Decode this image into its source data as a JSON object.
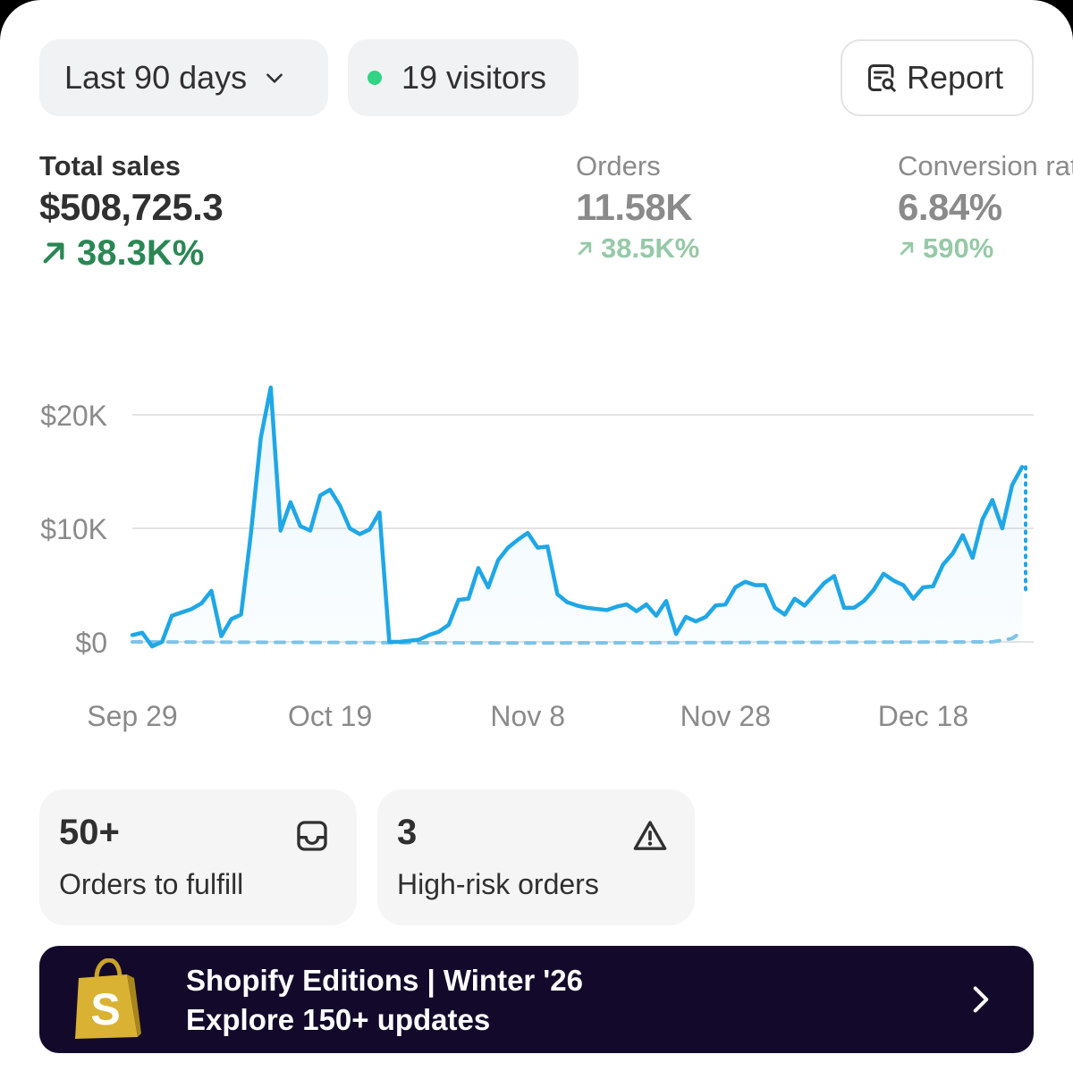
{
  "header": {
    "range_label": "Last 90 days",
    "visitors_label": "19 visitors",
    "report_label": "Report"
  },
  "metrics": {
    "total_sales": {
      "label": "Total sales",
      "value": "$508,725.3",
      "delta": "38.3K%"
    },
    "orders": {
      "label": "Orders",
      "value": "11.58K",
      "delta": "38.5K%"
    },
    "conversion": {
      "label": "Conversion rate",
      "value": "6.84%",
      "delta": "590%"
    }
  },
  "cards": {
    "fulfill": {
      "count": "50+",
      "label": "Orders to fulfill"
    },
    "risk": {
      "count": "3",
      "label": "High-risk orders"
    }
  },
  "banner": {
    "line1": "Shopify Editions | Winter '26",
    "line2": "Explore 150+ updates",
    "logo_letter": "S"
  },
  "colors": {
    "accent_line": "#1fa7e6",
    "comparison_line": "#7cc3e8",
    "positive": "#2a8754",
    "positive_muted": "#96c9a7",
    "live_dot": "#2fd485",
    "banner_bg": "#130a2b"
  },
  "chart_data": {
    "type": "line",
    "y_tick_labels": [
      "$0",
      "$10K",
      "$20K"
    ],
    "y_ticks": [
      0,
      10000,
      20000
    ],
    "ylim": [
      -1000,
      23500
    ],
    "x_tick_labels": [
      "Sep 29",
      "Oct 19",
      "Nov 8",
      "Nov 28",
      "Dec 18"
    ],
    "x_ticks": [
      "2025-09-29",
      "2025-10-19",
      "2025-11-08",
      "2025-11-28",
      "2025-12-18"
    ],
    "xlim": [
      "2025-09-29",
      "2025-12-28"
    ],
    "grid": true,
    "series": [
      {
        "style": "solid",
        "points": [
          [
            "2025-09-29",
            600
          ],
          [
            "2025-09-30",
            800
          ],
          [
            "2025-10-01",
            -400
          ],
          [
            "2025-10-02",
            0
          ],
          [
            "2025-10-03",
            2300
          ],
          [
            "2025-10-04",
            2600
          ],
          [
            "2025-10-05",
            2900
          ],
          [
            "2025-10-06",
            3400
          ],
          [
            "2025-10-07",
            4500
          ],
          [
            "2025-10-08",
            500
          ],
          [
            "2025-10-09",
            2000
          ],
          [
            "2025-10-10",
            2400
          ],
          [
            "2025-10-11",
            9600
          ],
          [
            "2025-10-12",
            18000
          ],
          [
            "2025-10-13",
            22400
          ],
          [
            "2025-10-14",
            9800
          ],
          [
            "2025-10-15",
            12300
          ],
          [
            "2025-10-16",
            10200
          ],
          [
            "2025-10-17",
            9800
          ],
          [
            "2025-10-18",
            12900
          ],
          [
            "2025-10-19",
            13400
          ],
          [
            "2025-10-20",
            12000
          ],
          [
            "2025-10-21",
            10000
          ],
          [
            "2025-10-22",
            9500
          ],
          [
            "2025-10-23",
            9900
          ],
          [
            "2025-10-24",
            11400
          ],
          [
            "2025-10-25",
            0
          ],
          [
            "2025-10-26",
            0
          ],
          [
            "2025-10-27",
            100
          ],
          [
            "2025-10-28",
            200
          ],
          [
            "2025-10-29",
            600
          ],
          [
            "2025-10-30",
            900
          ],
          [
            "2025-10-31",
            1500
          ],
          [
            "2025-11-01",
            3700
          ],
          [
            "2025-11-02",
            3800
          ],
          [
            "2025-11-03",
            6500
          ],
          [
            "2025-11-04",
            4800
          ],
          [
            "2025-11-05",
            7200
          ],
          [
            "2025-11-06",
            8300
          ],
          [
            "2025-11-07",
            9000
          ],
          [
            "2025-11-08",
            9600
          ],
          [
            "2025-11-09",
            8300
          ],
          [
            "2025-11-10",
            8400
          ],
          [
            "2025-11-11",
            4200
          ],
          [
            "2025-11-12",
            3500
          ],
          [
            "2025-11-13",
            3200
          ],
          [
            "2025-11-14",
            3000
          ],
          [
            "2025-11-15",
            2900
          ],
          [
            "2025-11-16",
            2800
          ],
          [
            "2025-11-17",
            3100
          ],
          [
            "2025-11-18",
            3300
          ],
          [
            "2025-11-19",
            2700
          ],
          [
            "2025-11-20",
            3300
          ],
          [
            "2025-11-21",
            2300
          ],
          [
            "2025-11-22",
            3600
          ],
          [
            "2025-11-23",
            700
          ],
          [
            "2025-11-24",
            2200
          ],
          [
            "2025-11-25",
            1800
          ],
          [
            "2025-11-26",
            2200
          ],
          [
            "2025-11-27",
            3200
          ],
          [
            "2025-11-28",
            3300
          ],
          [
            "2025-11-29",
            4800
          ],
          [
            "2025-11-30",
            5300
          ],
          [
            "2025-12-01",
            5000
          ],
          [
            "2025-12-02",
            5000
          ],
          [
            "2025-12-03",
            3000
          ],
          [
            "2025-12-04",
            2400
          ],
          [
            "2025-12-05",
            3800
          ],
          [
            "2025-12-06",
            3200
          ],
          [
            "2025-12-07",
            4200
          ],
          [
            "2025-12-08",
            5200
          ],
          [
            "2025-12-09",
            5800
          ],
          [
            "2025-12-10",
            3000
          ],
          [
            "2025-12-11",
            3000
          ],
          [
            "2025-12-12",
            3600
          ],
          [
            "2025-12-13",
            4600
          ],
          [
            "2025-12-14",
            6000
          ],
          [
            "2025-12-15",
            5400
          ],
          [
            "2025-12-16",
            5000
          ],
          [
            "2025-12-17",
            3800
          ],
          [
            "2025-12-18",
            4800
          ],
          [
            "2025-12-19",
            4900
          ],
          [
            "2025-12-20",
            6800
          ],
          [
            "2025-12-21",
            7800
          ],
          [
            "2025-12-22",
            9400
          ],
          [
            "2025-12-23",
            7400
          ],
          [
            "2025-12-24",
            10800
          ],
          [
            "2025-12-25",
            12500
          ],
          [
            "2025-12-26",
            10000
          ],
          [
            "2025-12-27",
            13800
          ],
          [
            "2025-12-28",
            15400
          ]
        ]
      },
      {
        "style": "dotted",
        "points": [
          [
            "2025-12-28",
            15400
          ],
          [
            "2025-12-28",
            4400
          ]
        ]
      },
      {
        "style": "dashed",
        "points": [
          [
            "2025-09-29",
            0
          ],
          [
            "2025-11-08",
            -100
          ],
          [
            "2025-12-25",
            0
          ],
          [
            "2025-12-27",
            300
          ],
          [
            "2025-12-28",
            900
          ]
        ]
      }
    ]
  }
}
